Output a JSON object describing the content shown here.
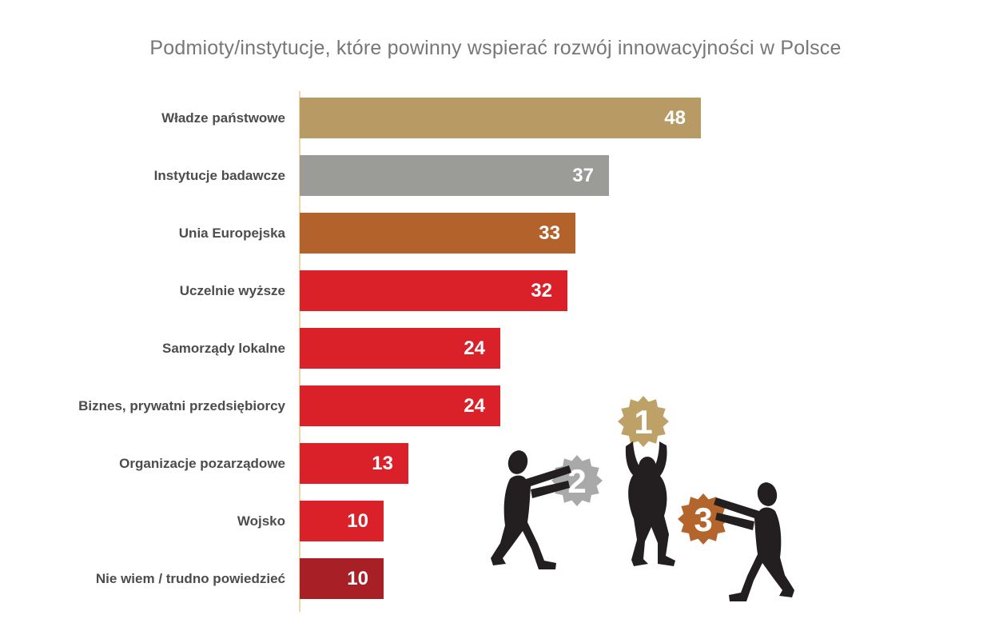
{
  "chart_data": {
    "type": "bar",
    "orientation": "horizontal",
    "title": "Podmioty/instytucje, które powinny wspierać rozwój innowacyjności w Polsce",
    "categories": [
      "Władze państwowe",
      "Instytucje badawcze",
      "Unia Europejska",
      "Uczelnie wyższe",
      "Samorządy lokalne",
      "Biznes, prywatni przedsiębiorcy",
      "Organizacje pozarządowe",
      "Wojsko",
      "Nie wiem / trudno powiedzieć"
    ],
    "values": [
      48,
      37,
      33,
      32,
      24,
      24,
      13,
      10,
      10
    ],
    "bar_colors": [
      "#b89a64",
      "#9b9b98",
      "#b4622b",
      "#da2029",
      "#da2029",
      "#da2029",
      "#da2029",
      "#da2029",
      "#a81f26"
    ],
    "value_label_color": "#ffffff",
    "xlim": [
      0,
      48
    ],
    "grid": false,
    "legend": false,
    "axis_line_color": "#eed7a9",
    "value_labels_position": "inside-end"
  },
  "illustration": {
    "badges": [
      {
        "rank": "1",
        "name": "gold-rosette-badge",
        "color": "#bda167"
      },
      {
        "rank": "2",
        "name": "silver-rosette-badge",
        "color": "#a9a9a9"
      },
      {
        "rank": "3",
        "name": "bronze-rosette-badge",
        "color": "#b4652c"
      }
    ],
    "figures": [
      "person-holding-badge-1",
      "person-pushing-badge-2",
      "person-pushing-badge-3"
    ],
    "silhouette_color": "#231f20"
  },
  "style": {
    "title_color": "#76777a",
    "category_label_color": "#4c4c4e",
    "background": "#ffffff"
  }
}
